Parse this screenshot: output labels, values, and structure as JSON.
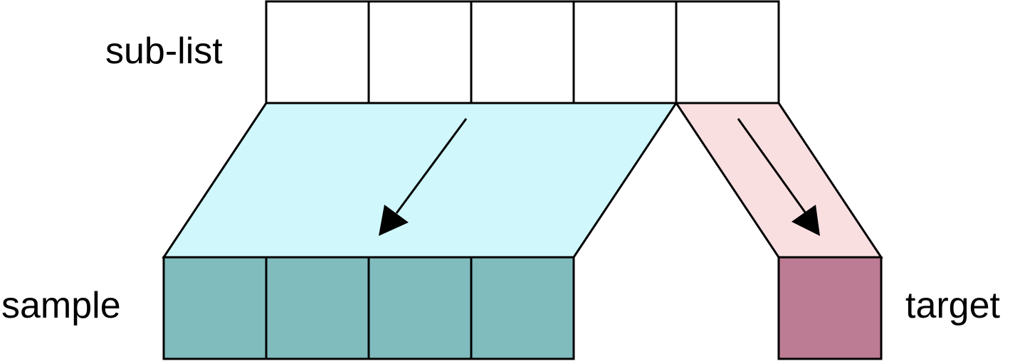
{
  "labels": {
    "sublist": "sub-list",
    "sample": "sample",
    "target": "target"
  },
  "colors": {
    "sublist_cell": "#ffffff",
    "sample_band": "#cff7fc",
    "target_band": "#fadfe1",
    "sample_cell": "#80bbbe",
    "target_cell": "#bc7c93",
    "stroke": "#000000"
  }
}
